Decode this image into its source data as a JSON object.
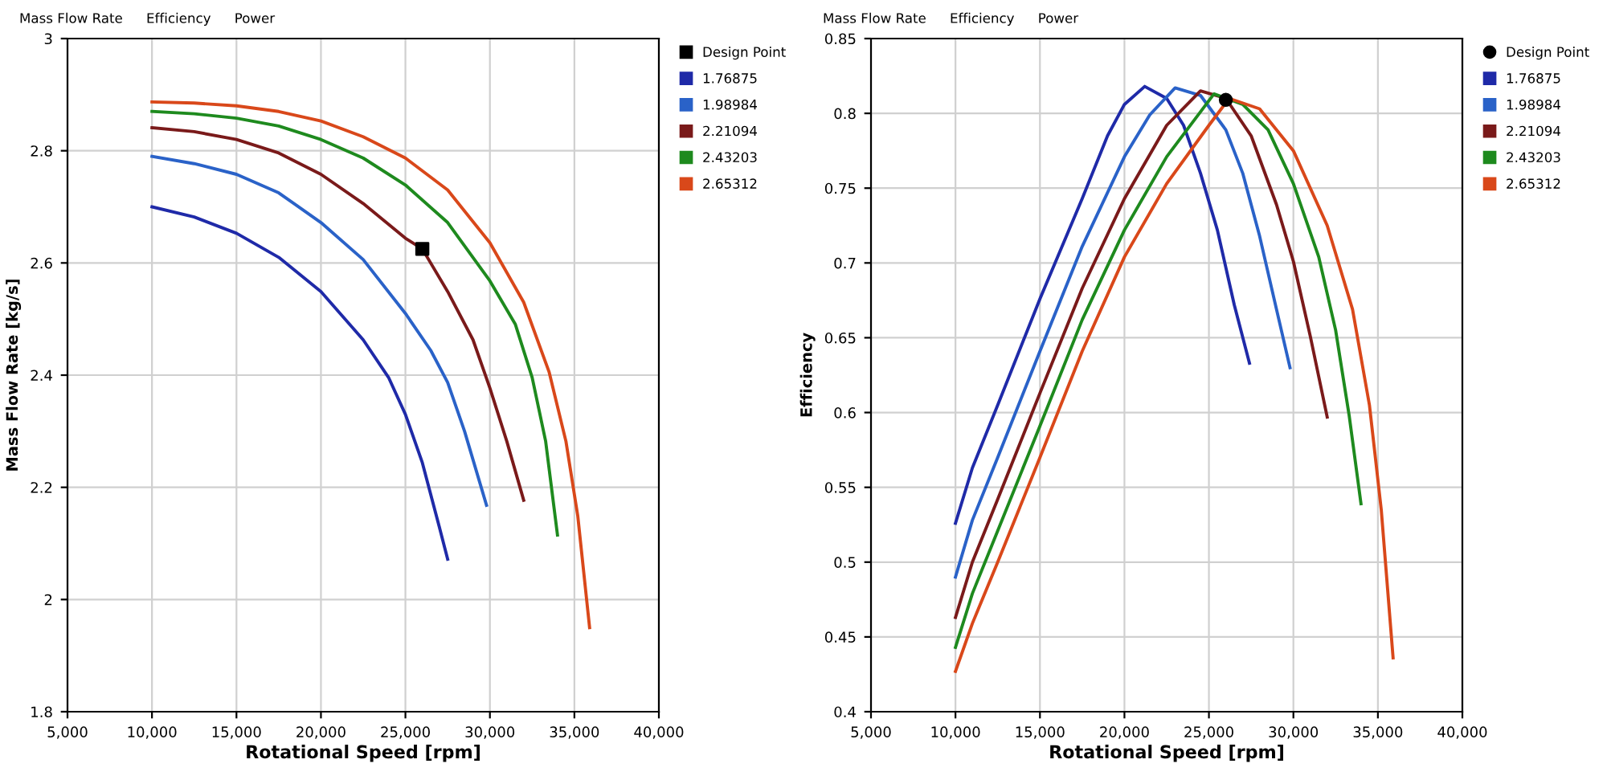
{
  "chart_data": [
    {
      "type": "line",
      "xlabel": "Rotational Speed [rpm]",
      "ylabel": "Mass Flow Rate [kg/s]",
      "annotations": [
        "Mass Flow Rate",
        "Efficiency",
        "Power"
      ],
      "xlim": [
        5000,
        40000
      ],
      "ylim": [
        1.8,
        3
      ],
      "xticks": [
        {
          "value": 5000,
          "label": "5,000"
        },
        {
          "value": 10000,
          "label": "10,000"
        },
        {
          "value": 15000,
          "label": "15,000"
        },
        {
          "value": 20000,
          "label": "20,000"
        },
        {
          "value": 25000,
          "label": "25,000"
        },
        {
          "value": 30000,
          "label": "30,000"
        },
        {
          "value": 35000,
          "label": "35,000"
        },
        {
          "value": 40000,
          "label": "40,000"
        }
      ],
      "yticks": [
        1.8,
        2,
        2.2,
        2.4,
        2.6,
        2.8,
        3
      ],
      "grid": true,
      "legend": "right",
      "line_style": "solid",
      "marker": "none",
      "series": [
        {
          "name": "Design Point",
          "type": "scatter",
          "marker": "square",
          "color": "#000000",
          "x": [
            26000
          ],
          "values": [
            2.625
          ]
        },
        {
          "name": "1.76875",
          "color": "#1f2aa8",
          "x": [
            10000,
            12500,
            15000,
            17500,
            20000,
            22500,
            24000,
            25000,
            26000,
            27000,
            27500
          ],
          "values": [
            2.7,
            2.682,
            2.653,
            2.61,
            2.549,
            2.463,
            2.396,
            2.33,
            2.244,
            2.13,
            2.072
          ]
        },
        {
          "name": "1.98984",
          "color": "#2a62c8",
          "x": [
            10000,
            12500,
            15000,
            17500,
            20000,
            22500,
            25000,
            26500,
            27500,
            28500,
            29800
          ],
          "values": [
            2.79,
            2.777,
            2.758,
            2.725,
            2.672,
            2.606,
            2.51,
            2.444,
            2.387,
            2.3,
            2.168
          ]
        },
        {
          "name": "2.21094",
          "color": "#7a1a1a",
          "x": [
            10000,
            12500,
            15000,
            17500,
            20000,
            22500,
            25000,
            26000,
            27500,
            29000,
            30000,
            31000,
            32000
          ],
          "values": [
            2.841,
            2.834,
            2.82,
            2.796,
            2.758,
            2.706,
            2.644,
            2.625,
            2.549,
            2.463,
            2.377,
            2.282,
            2.177
          ]
        },
        {
          "name": "2.43203",
          "color": "#1e8a1e",
          "x": [
            10000,
            12500,
            15000,
            17500,
            20000,
            22500,
            25000,
            27500,
            30000,
            31500,
            32500,
            33300,
            34000
          ],
          "values": [
            2.87,
            2.866,
            2.858,
            2.844,
            2.82,
            2.787,
            2.739,
            2.672,
            2.568,
            2.491,
            2.396,
            2.282,
            2.115
          ]
        },
        {
          "name": "2.65312",
          "color": "#d9481a",
          "x": [
            10000,
            12500,
            15000,
            17500,
            20000,
            22500,
            25000,
            27500,
            30000,
            32000,
            33500,
            34500,
            35200,
            35900
          ],
          "values": [
            2.887,
            2.885,
            2.88,
            2.87,
            2.853,
            2.825,
            2.787,
            2.73,
            2.636,
            2.53,
            2.406,
            2.282,
            2.149,
            1.95
          ]
        }
      ]
    },
    {
      "type": "line",
      "xlabel": "Rotational Speed [rpm]",
      "ylabel": "Efficiency",
      "annotations": [
        "Mass Flow Rate",
        "Efficiency",
        "Power"
      ],
      "xlim": [
        5000,
        40000
      ],
      "ylim": [
        0.4,
        0.85
      ],
      "xticks": [
        {
          "value": 5000,
          "label": "5,000"
        },
        {
          "value": 10000,
          "label": "10,000"
        },
        {
          "value": 15000,
          "label": "15,000"
        },
        {
          "value": 20000,
          "label": "20,000"
        },
        {
          "value": 25000,
          "label": "25,000"
        },
        {
          "value": 30000,
          "label": "30,000"
        },
        {
          "value": 35000,
          "label": "35,000"
        },
        {
          "value": 40000,
          "label": "40,000"
        }
      ],
      "yticks": [
        0.4,
        0.45,
        0.5,
        0.55,
        0.6,
        0.65,
        0.7,
        0.75,
        0.8,
        0.85
      ],
      "grid": true,
      "legend": "right",
      "line_style": "solid",
      "marker": "none",
      "series": [
        {
          "name": "Design Point",
          "type": "scatter",
          "marker": "circle",
          "color": "#000000",
          "x": [
            26000
          ],
          "values": [
            0.809
          ]
        },
        {
          "name": "1.76875",
          "color": "#1f2aa8",
          "x": [
            10000,
            11000,
            12500,
            15000,
            17500,
            19000,
            20000,
            21200,
            22500,
            23500,
            24500,
            25500,
            26500,
            27400
          ],
          "values": [
            0.526,
            0.563,
            0.605,
            0.676,
            0.743,
            0.785,
            0.806,
            0.818,
            0.81,
            0.792,
            0.76,
            0.722,
            0.672,
            0.633
          ]
        },
        {
          "name": "1.98984",
          "color": "#2a62c8",
          "x": [
            10000,
            11000,
            12500,
            15000,
            17500,
            20000,
            21500,
            23000,
            24500,
            26000,
            27000,
            28000,
            29000,
            29800
          ],
          "values": [
            0.49,
            0.528,
            0.57,
            0.641,
            0.711,
            0.771,
            0.799,
            0.817,
            0.812,
            0.789,
            0.76,
            0.718,
            0.669,
            0.63
          ]
        },
        {
          "name": "2.21094",
          "color": "#7a1a1a",
          "x": [
            10000,
            11000,
            12500,
            15000,
            17500,
            20000,
            22500,
            24500,
            26000,
            27500,
            29000,
            30000,
            31000,
            32000
          ],
          "values": [
            0.463,
            0.5,
            0.542,
            0.613,
            0.683,
            0.743,
            0.792,
            0.815,
            0.81,
            0.785,
            0.739,
            0.701,
            0.651,
            0.597
          ]
        },
        {
          "name": "2.43203",
          "color": "#1e8a1e",
          "x": [
            10000,
            11000,
            12500,
            15000,
            17500,
            20000,
            22500,
            25300,
            27000,
            28500,
            30000,
            31500,
            32500,
            33300,
            34000
          ],
          "values": [
            0.443,
            0.479,
            0.521,
            0.591,
            0.662,
            0.722,
            0.771,
            0.813,
            0.806,
            0.789,
            0.753,
            0.704,
            0.655,
            0.598,
            0.539
          ]
        },
        {
          "name": "2.65312",
          "color": "#d9481a",
          "x": [
            10000,
            11000,
            12500,
            15000,
            17500,
            20000,
            22500,
            25000,
            26200,
            28000,
            30000,
            32000,
            33500,
            34500,
            35200,
            35900
          ],
          "values": [
            0.427,
            0.459,
            0.5,
            0.57,
            0.641,
            0.704,
            0.753,
            0.792,
            0.81,
            0.803,
            0.775,
            0.725,
            0.669,
            0.605,
            0.535,
            0.436
          ]
        }
      ]
    }
  ]
}
